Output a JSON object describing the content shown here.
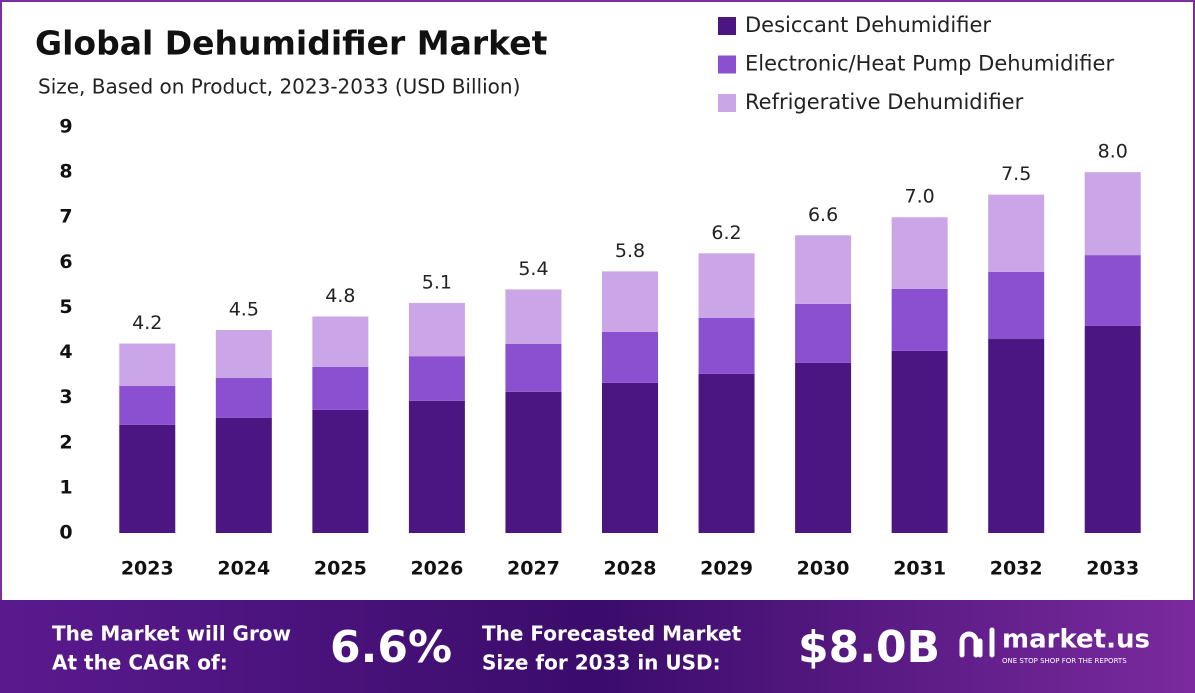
{
  "chart_data": {
    "type": "stacked-bar",
    "title": "Global Dehumidifier Market",
    "subtitle": "Size, Based on Product, 2023-2033 (USD Billion)",
    "categories": [
      "2023",
      "2024",
      "2025",
      "2026",
      "2027",
      "2028",
      "2029",
      "2030",
      "2031",
      "2032",
      "2033"
    ],
    "series": [
      {
        "name": "Desiccant Dehumidifier",
        "color": "#4b1682",
        "values": [
          2.4,
          2.55,
          2.73,
          2.93,
          3.13,
          3.33,
          3.53,
          3.77,
          4.04,
          4.3,
          4.59
        ]
      },
      {
        "name": "Electronic/Heat Pump Dehumidifier",
        "color": "#8b50cf",
        "values": [
          0.86,
          0.89,
          0.95,
          0.99,
          1.06,
          1.13,
          1.24,
          1.31,
          1.37,
          1.49,
          1.57
        ]
      },
      {
        "name": "Refrigerative Dehumidifier",
        "color": "#caa6e8",
        "values": [
          0.94,
          1.06,
          1.12,
          1.18,
          1.21,
          1.34,
          1.43,
          1.52,
          1.59,
          1.71,
          1.84
        ]
      }
    ],
    "totals": [
      4.2,
      4.5,
      4.8,
      5.1,
      5.4,
      5.8,
      6.2,
      6.6,
      7.0,
      7.5,
      8.0
    ],
    "total_labels": [
      "4.2",
      "4.5",
      "4.8",
      "5.1",
      "5.4",
      "5.8",
      "6.2",
      "6.6",
      "7.0",
      "7.5",
      "8.0"
    ],
    "ylim": [
      0,
      9
    ],
    "yticks": [
      0,
      1,
      2,
      3,
      4,
      5,
      6,
      7,
      8,
      9
    ],
    "grid": false,
    "legend": "top-right"
  },
  "footer": {
    "cagr_label": [
      "The Market will Grow",
      "At the CAGR of:"
    ],
    "cagr_value": "6.6%",
    "forecast_label": [
      "The Forecasted Market",
      "Size for 2033 in USD:"
    ],
    "forecast_value": "$8.0B",
    "brand": "market.us",
    "tagline": "ONE STOP SHOP FOR THE REPORTS"
  }
}
